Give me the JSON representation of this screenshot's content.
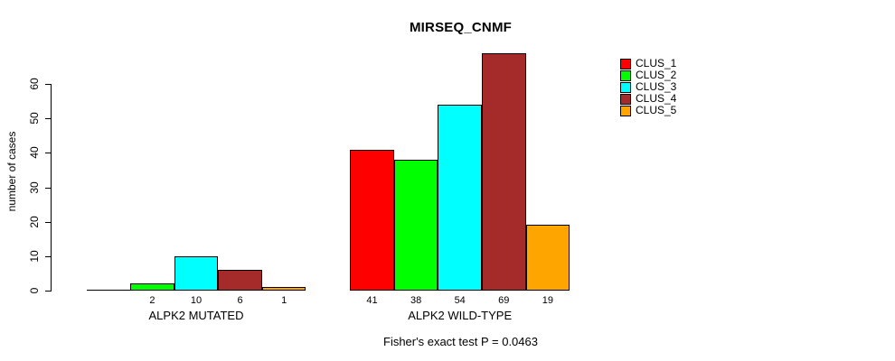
{
  "chart_data": {
    "type": "bar",
    "title": "MIRSEQ_CNMF",
    "ylabel": "number of cases",
    "ylim": [
      0,
      60
    ],
    "yticks": [
      0,
      10,
      20,
      30,
      40,
      50,
      60
    ],
    "grid": false,
    "legend_position": "right-outside-top",
    "categories": [
      "ALPK2 MUTATED",
      "ALPK2 WILD-TYPE"
    ],
    "series": [
      {
        "name": "CLUS_1",
        "color": "#FF0000",
        "values": [
          0,
          41
        ]
      },
      {
        "name": "CLUS_2",
        "color": "#00FF00",
        "values": [
          2,
          38
        ]
      },
      {
        "name": "CLUS_3",
        "color": "#00FFFF",
        "values": [
          10,
          54
        ]
      },
      {
        "name": "CLUS_4",
        "color": "#A52A2A",
        "values": [
          6,
          69
        ]
      },
      {
        "name": "CLUS_5",
        "color": "#FFA500",
        "values": [
          1,
          19
        ]
      }
    ],
    "bar_labels": [
      [
        "",
        "2",
        "10",
        "6",
        "1"
      ],
      [
        "41",
        "38",
        "54",
        "69",
        "19"
      ]
    ],
    "annotation": "Fisher's exact test P = 0.0463",
    "axis_color": "#000000",
    "background_color": "#ffffff"
  }
}
